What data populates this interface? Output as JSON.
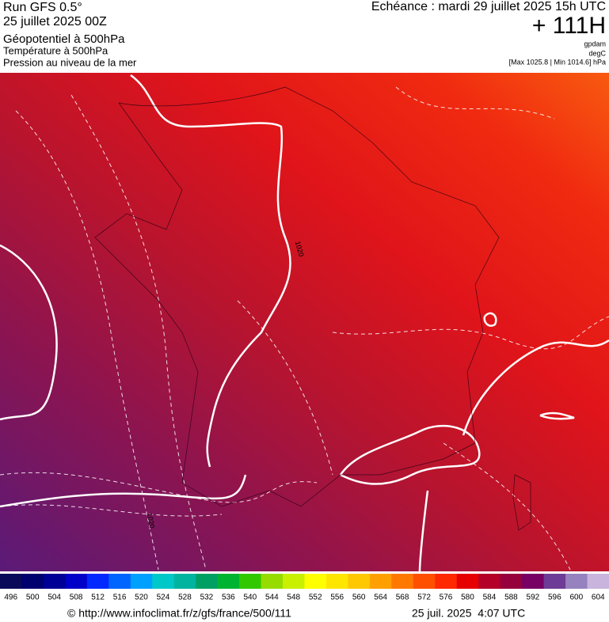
{
  "header": {
    "left": [
      "Run GFS 0.5°",
      "25 juillet 2025 00Z",
      "Géopotentiel à 500hPa",
      "Température à 500hPa",
      "Pression au niveau de la mer"
    ],
    "echeance": "Echéance : mardi 29 juillet 2025 15h UTC",
    "run_offset": "+ 111H",
    "units": [
      "gpdam",
      "degC",
      "[Max 1025.8 | Min 1014.6] hPa"
    ]
  },
  "map": {
    "contour_labels": [
      "1020",
      "1020"
    ]
  },
  "color_scale": [
    {
      "label": "496",
      "color": "#0a0a5a"
    },
    {
      "label": "500",
      "color": "#00006e"
    },
    {
      "label": "504",
      "color": "#000096"
    },
    {
      "label": "508",
      "color": "#0000c8"
    },
    {
      "label": "512",
      "color": "#0028ff"
    },
    {
      "label": "516",
      "color": "#0064ff"
    },
    {
      "label": "520",
      "color": "#00a0ff"
    },
    {
      "label": "524",
      "color": "#00c8c8"
    },
    {
      "label": "528",
      "color": "#00b4a0"
    },
    {
      "label": "532",
      "color": "#00a064"
    },
    {
      "label": "536",
      "color": "#00b432"
    },
    {
      "label": "540",
      "color": "#32c800"
    },
    {
      "label": "544",
      "color": "#96dc00"
    },
    {
      "label": "548",
      "color": "#c8f000"
    },
    {
      "label": "552",
      "color": "#ffff00"
    },
    {
      "label": "556",
      "color": "#ffe600"
    },
    {
      "label": "560",
      "color": "#ffc800"
    },
    {
      "label": "564",
      "color": "#ffa000"
    },
    {
      "label": "568",
      "color": "#ff7800"
    },
    {
      "label": "572",
      "color": "#ff5000"
    },
    {
      "label": "576",
      "color": "#ff2800"
    },
    {
      "label": "580",
      "color": "#e60000"
    },
    {
      "label": "584",
      "color": "#b40028"
    },
    {
      "label": "588",
      "color": "#96003c"
    },
    {
      "label": "592",
      "color": "#780064"
    },
    {
      "label": "596",
      "color": "#6e3c96"
    },
    {
      "label": "600",
      "color": "#9682be"
    },
    {
      "label": "604",
      "color": "#c8b4dc"
    }
  ],
  "footer": {
    "url": "© http://www.infoclimat.fr/z/gfs/france/500/111",
    "timestamp": "25 juil. 2025  4:07 UTC"
  }
}
